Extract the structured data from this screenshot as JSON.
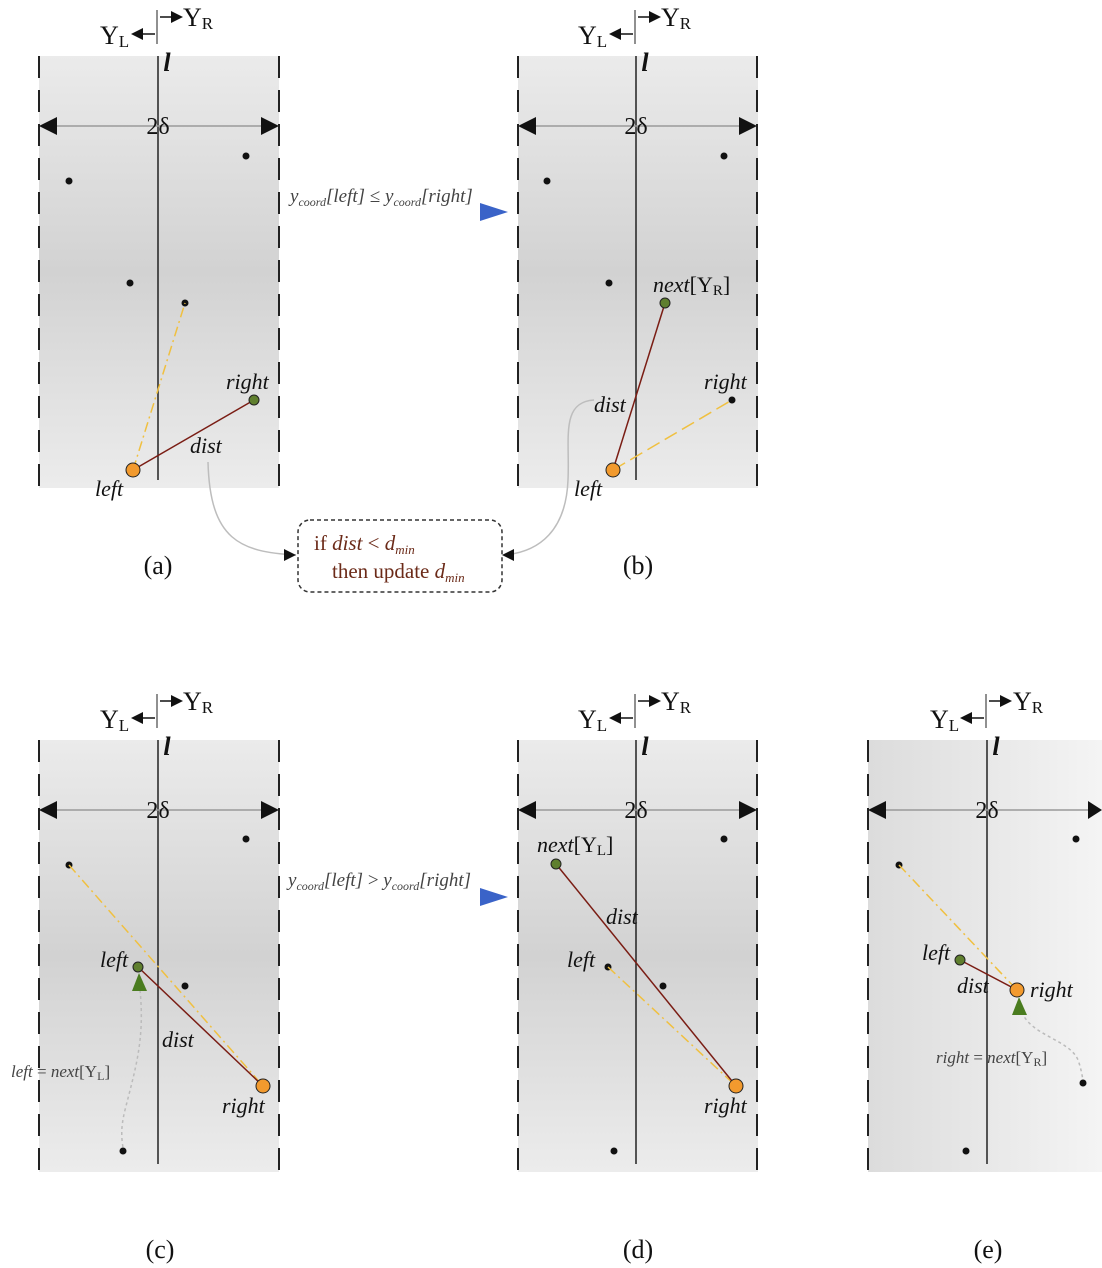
{
  "symbols": {
    "y_left": "Y",
    "y_left_sub": "L",
    "y_right": "Y",
    "y_right_sub": "R",
    "line": "l",
    "width": "2δ"
  },
  "panels": [
    {
      "caption": "(a)",
      "labels": {
        "left": "left",
        "right": "right",
        "dist": "dist"
      }
    },
    {
      "caption": "(b)",
      "labels": {
        "left": "left",
        "right": "right",
        "dist": "dist",
        "next": "next",
        "next_bracket_open": "[Y",
        "next_sub": "R",
        "next_bracket_close": "]"
      }
    },
    {
      "caption": "(c)",
      "labels": {
        "left": "left",
        "right": "right",
        "dist": "dist",
        "update_left": "left",
        "update_eq": " = ",
        "update_next": "next",
        "update_bracket_open": "[Y",
        "update_sub": "L",
        "update_bracket_close": "]"
      }
    },
    {
      "caption": "(d)",
      "labels": {
        "left": "left",
        "right": "right",
        "dist": "dist",
        "next": "next",
        "next_bracket_open": "[Y",
        "next_sub": "L",
        "next_bracket_close": "]"
      }
    },
    {
      "caption": "(e)",
      "labels": {
        "left": "left",
        "right": "right",
        "dist": "dist",
        "update_right": "right",
        "update_eq": " = ",
        "update_next": "next",
        "update_bracket_open": "[Y",
        "update_sub": "R",
        "update_bracket_close": "]"
      }
    }
  ],
  "transitions": [
    {
      "lhs_y": "y",
      "lhs_sub": "coord",
      "lhs_arg": "[left]",
      "op": " ≤ ",
      "rhs_y": "y",
      "rhs_sub": "coord",
      "rhs_arg": "[right]"
    },
    {
      "lhs_y": "y",
      "lhs_sub": "coord",
      "lhs_arg": "[left]",
      "op": " > ",
      "rhs_y": "y",
      "rhs_sub": "coord",
      "rhs_arg": "[right]"
    }
  ],
  "update_box": {
    "line1_if": "if ",
    "line1_dist": "dist",
    "line1_op": " < ",
    "line1_d": "d",
    "line1_sub": "min",
    "line2_then": "then update ",
    "line2_d": "d",
    "line2_sub": "min"
  },
  "colors": {
    "endpoint_fill": "#f29a2e",
    "next_fill": "#5f7f2e",
    "dist_line": "#7a1d14",
    "alt_line": "#f0c040",
    "transition_arrow": "#3a63c8",
    "update_arrow": "#4a7c1f"
  }
}
